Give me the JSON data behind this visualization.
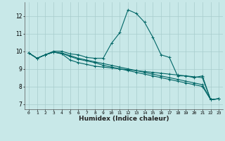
{
  "xlabel": "Humidex (Indice chaleur)",
  "bg_color": "#c8e8e8",
  "line_color": "#006666",
  "grid_color": "#a8cccc",
  "xlim": [
    -0.5,
    23.5
  ],
  "ylim": [
    6.7,
    12.8
  ],
  "xticks": [
    0,
    1,
    2,
    3,
    4,
    5,
    6,
    7,
    8,
    9,
    10,
    11,
    12,
    13,
    14,
    15,
    16,
    17,
    18,
    19,
    20,
    21,
    22,
    23
  ],
  "yticks": [
    7,
    8,
    9,
    10,
    11,
    12
  ],
  "lines": [
    [
      9.9,
      9.6,
      9.8,
      10.0,
      10.0,
      9.85,
      9.8,
      9.65,
      9.6,
      9.6,
      10.45,
      11.05,
      12.35,
      12.15,
      11.65,
      10.8,
      9.8,
      9.65,
      8.6,
      8.6,
      8.5,
      8.6,
      7.25,
      7.3
    ],
    [
      9.9,
      9.6,
      9.8,
      9.95,
      9.85,
      9.5,
      9.35,
      9.25,
      9.15,
      9.1,
      9.05,
      9.0,
      8.95,
      8.9,
      8.85,
      8.8,
      8.75,
      8.7,
      8.65,
      8.6,
      8.55,
      8.5,
      7.25,
      7.3
    ],
    [
      9.9,
      9.6,
      9.8,
      9.95,
      9.9,
      9.75,
      9.6,
      9.5,
      9.4,
      9.3,
      9.2,
      9.1,
      9.0,
      8.9,
      8.8,
      8.7,
      8.6,
      8.5,
      8.4,
      8.3,
      8.2,
      8.1,
      7.25,
      7.3
    ],
    [
      9.9,
      9.6,
      9.8,
      9.95,
      9.88,
      9.7,
      9.55,
      9.45,
      9.35,
      9.2,
      9.1,
      9.0,
      8.9,
      8.8,
      8.7,
      8.6,
      8.5,
      8.4,
      8.3,
      8.2,
      8.1,
      8.0,
      7.25,
      7.3
    ]
  ]
}
